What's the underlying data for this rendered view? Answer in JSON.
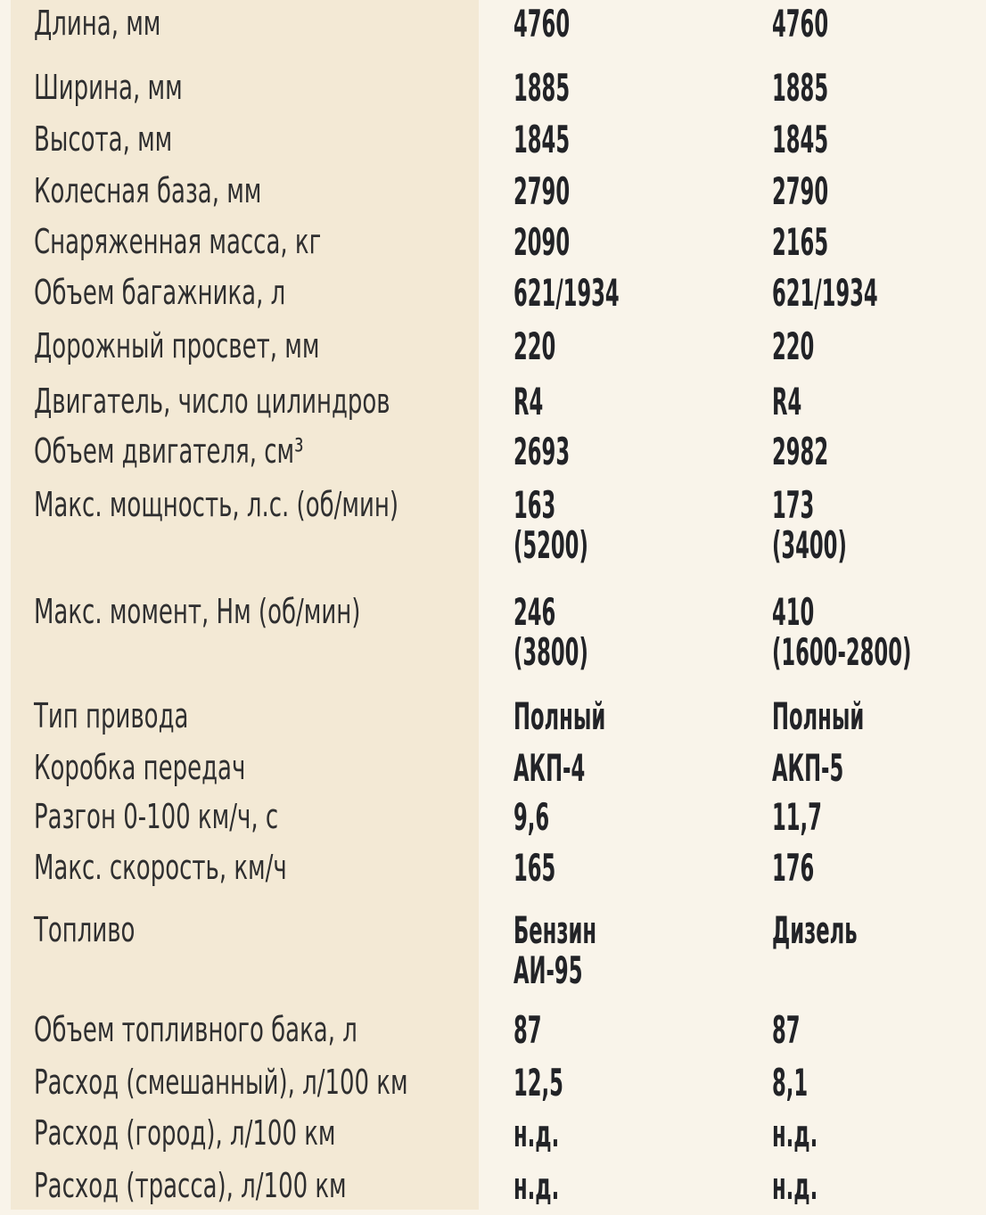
{
  "colors": {
    "page_bg": "#f9f4ea",
    "panel_bg": "#f3e9d5",
    "label_color": "#2f2f30",
    "value_color": "#222327"
  },
  "chart_data": {
    "type": "table",
    "title": "",
    "headers": [],
    "rows": [
      {
        "label": "Длина, мм",
        "values": [
          "4760",
          "4760"
        ]
      },
      {
        "label": "Ширина, мм",
        "values": [
          "1885",
          "1885"
        ]
      },
      {
        "label": "Высота, мм",
        "values": [
          "1845",
          "1845"
        ]
      },
      {
        "label": "Колесная база, мм",
        "values": [
          "2790",
          "2790"
        ]
      },
      {
        "label": "Снаряженная масса, кг",
        "values": [
          "2090",
          "2165"
        ]
      },
      {
        "label": "Объем багажника, л",
        "values": [
          "621/1934",
          "621/1934"
        ]
      },
      {
        "label": "Дорожный просвет, мм",
        "values": [
          "220",
          "220"
        ]
      },
      {
        "label": "Двигатель, число цилиндров",
        "values": [
          "R4",
          "R4"
        ]
      },
      {
        "label": "Объем двигателя, см³",
        "values": [
          "2693",
          "2982"
        ]
      },
      {
        "label": "Макс. мощность, л.с. (об/мин)",
        "values": [
          "163\n(5200)",
          "173\n(3400)"
        ]
      },
      {
        "label": "Макс. момент, Нм (об/мин)",
        "values": [
          "246\n(3800)",
          "410\n(1600-2800)"
        ]
      },
      {
        "label": "Тип привода",
        "values": [
          "Полный",
          "Полный"
        ]
      },
      {
        "label": "Коробка передач",
        "values": [
          "АКП-4",
          "АКП-5"
        ]
      },
      {
        "label": "Разгон 0-100 км/ч, с",
        "values": [
          "9,6",
          "11,7"
        ]
      },
      {
        "label": "Макс. скорость, км/ч",
        "values": [
          "165",
          "176"
        ]
      },
      {
        "label": "Топливо",
        "values": [
          "Бензин\nАИ-95",
          "Дизель"
        ]
      },
      {
        "label": "Объем топливного бака, л",
        "values": [
          "87",
          "87"
        ]
      },
      {
        "label": "Расход (смешанный), л/100 км",
        "values": [
          "12,5",
          "8,1"
        ]
      },
      {
        "label": "Расход (город), л/100 км",
        "values": [
          "н.д.",
          "н.д."
        ]
      },
      {
        "label": "Расход (трасса), л/100 км",
        "values": [
          "н.д.",
          "н.д."
        ]
      }
    ]
  }
}
